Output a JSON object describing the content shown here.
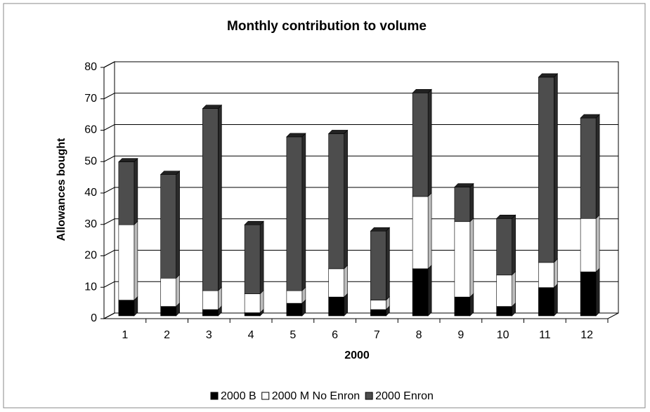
{
  "chart_data": {
    "type": "bar3d-stacked",
    "title": "Monthly contribution to volume",
    "x_label": "2000",
    "y_label": "Allowances bought",
    "categories": [
      "1",
      "2",
      "3",
      "4",
      "5",
      "6",
      "7",
      "8",
      "9",
      "10",
      "11",
      "12"
    ],
    "series": [
      {
        "name": "2000 B",
        "color": "#000000",
        "values": [
          5,
          3,
          2,
          1,
          4,
          6,
          2,
          15,
          6,
          3,
          9,
          14
        ]
      },
      {
        "name": "2000 M No Enron",
        "color": "#ffffff",
        "values": [
          24,
          9,
          6,
          6,
          4,
          9,
          3,
          23,
          24,
          10,
          8,
          17
        ]
      },
      {
        "name": "2000 Enron",
        "color": "#4d4d4d",
        "values": [
          20,
          33,
          58,
          22,
          49,
          43,
          22,
          33,
          11,
          18,
          59,
          32
        ]
      }
    ],
    "ylim": [
      0,
      80
    ],
    "yticks": [
      0,
      10,
      20,
      30,
      40,
      50,
      60,
      70,
      80
    ],
    "grid": true,
    "legend": "bottom"
  }
}
